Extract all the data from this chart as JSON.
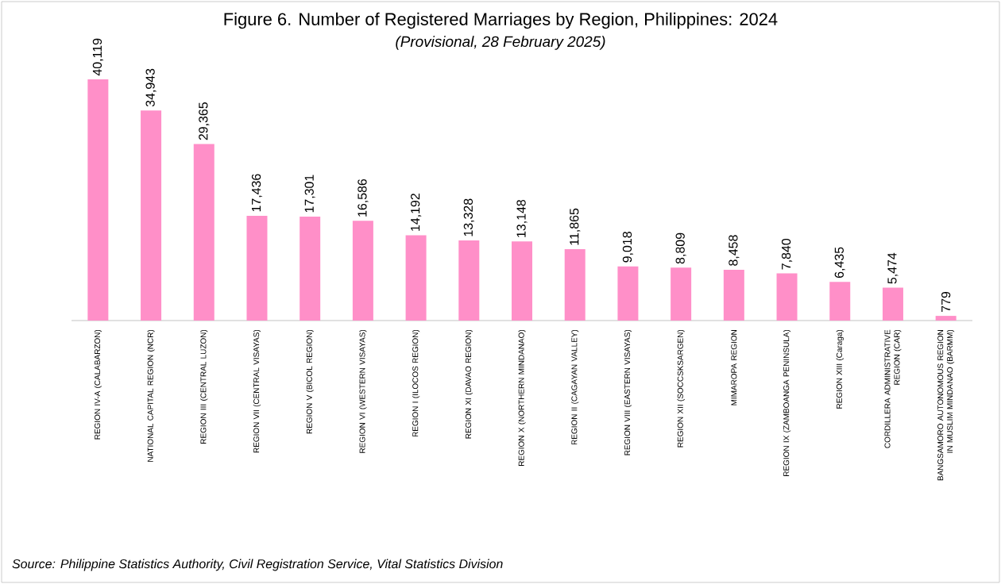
{
  "chart_data": {
    "type": "bar",
    "title": "Figure 6. Number of Registered Marriages by Region, Philippines: 2024",
    "subtitle": "(Provisional, 28 February 2025)",
    "categories": [
      "REGION IV-A (CALABARZON)",
      "NATIONAL CAPITAL REGION (NCR)",
      "REGION III (CENTRAL LUZON)",
      "REGION VII (CENTRAL VISAYAS)",
      "REGION V (BICOL REGION)",
      "REGION VI (WESTERN VISAYAS)",
      "REGION I (ILOCOS REGION)",
      "REGION XI (DAVAO REGION)",
      "REGION X (NORTHERN MINDANAO)",
      "REGION II (CAGAYAN VALLEY)",
      "REGION VIII (EASTERN VISAYAS)",
      "REGION XII (SOCCSKSARGEN)",
      "MIMAROPA REGION",
      "REGION IX (ZAMBOANGA PENINSULA)",
      "REGION XIII (Caraga)",
      "CORDILLERA ADMINISTRATIVE REGION (CAR)",
      "BANGSAMORO AUTONOMOUS REGION IN MUSLIM MINDANAO (BARMM)"
    ],
    "values": [
      40119,
      34943,
      29365,
      17436,
      17301,
      16586,
      14192,
      13328,
      13148,
      11865,
      9018,
      8809,
      8458,
      7840,
      6435,
      5474,
      779
    ],
    "value_labels": [
      "40,119",
      "34,943",
      "29,365",
      "17,436",
      "17,301",
      "16,586",
      "14,192",
      "13,328",
      "13,148",
      "11,865",
      "9,018",
      "8,809",
      "8,458",
      "7,840",
      "6,435",
      "5,474",
      "779"
    ],
    "color": "#ff8fc8",
    "annotations": [
      "Source: Philippine Statistics Authority, Civil Registration Service, Vital Statistics Division"
    ]
  }
}
